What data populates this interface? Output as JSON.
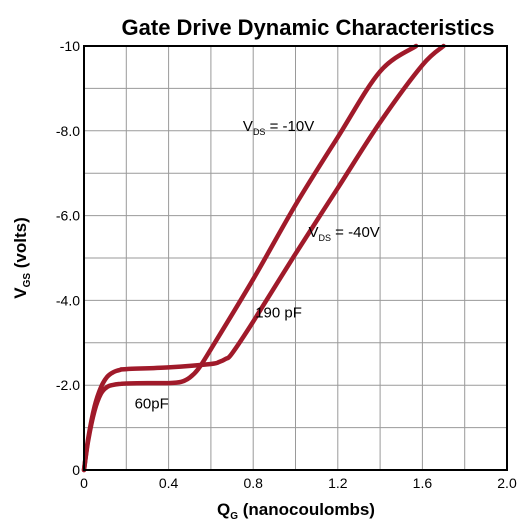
{
  "chart_data": {
    "type": "line",
    "title": "Gate Drive Dynamic Characteristics",
    "xlabel": {
      "main": "Q",
      "sub": "G",
      "rest": " (nanocoulombs)"
    },
    "ylabel": {
      "main": "V",
      "sub": "GS",
      "rest": " (volts)"
    },
    "xlim": [
      0,
      2.0
    ],
    "ylim": [
      0,
      -10
    ],
    "x_ticks": [
      0,
      0.4,
      0.8,
      1.2,
      1.6,
      2.0
    ],
    "x_tick_labels": [
      "0",
      "0.4",
      "0.8",
      "1.2",
      "1.6",
      "2.0"
    ],
    "y_ticks": [
      0,
      -2.0,
      -4.0,
      -6.0,
      -8.0,
      -10
    ],
    "y_tick_labels": [
      "0",
      "-2.0",
      "-4.0",
      "-6.0",
      "-8.0",
      "-10"
    ],
    "grid": true,
    "series": [
      {
        "name": "VDS = -10V",
        "x": [
          0,
          0.02,
          0.05,
          0.08,
          0.11,
          0.14,
          0.17,
          0.2,
          0.3,
          0.4,
          0.46,
          0.5,
          0.54,
          0.6,
          0.8,
          1.0,
          1.2,
          1.4,
          1.57
        ],
        "y": [
          0,
          -0.7,
          -1.4,
          -1.8,
          -1.96,
          -2.01,
          -2.03,
          -2.04,
          -2.05,
          -2.05,
          -2.08,
          -2.18,
          -2.38,
          -2.85,
          -4.5,
          -6.25,
          -7.85,
          -9.4,
          -10
        ]
      },
      {
        "name": "VDS = -40V",
        "x": [
          0,
          0.02,
          0.05,
          0.08,
          0.11,
          0.14,
          0.17,
          0.2,
          0.4,
          0.6,
          0.64,
          0.67,
          0.7,
          0.8,
          1.0,
          1.2,
          1.4,
          1.6,
          1.7
        ],
        "y": [
          0,
          -0.75,
          -1.5,
          -1.95,
          -2.2,
          -2.31,
          -2.36,
          -2.38,
          -2.42,
          -2.5,
          -2.55,
          -2.62,
          -2.75,
          -3.5,
          -5.1,
          -6.65,
          -8.2,
          -9.55,
          -10
        ]
      }
    ],
    "annotations": [
      {
        "id": "vds10",
        "main": "V",
        "sub": "DS",
        "rest": " = -10V",
        "x": 0.92,
        "y": -8.0
      },
      {
        "id": "vds40",
        "main": "V",
        "sub": "DS",
        "rest": " = -40V",
        "x": 1.23,
        "y": -5.5
      },
      {
        "id": "c190",
        "text": "190 pF",
        "x": 0.92,
        "y": -3.6
      },
      {
        "id": "c60",
        "text": "60pF",
        "x": 0.32,
        "y": -1.45
      }
    ],
    "colors": {
      "curve": "#a01a2a",
      "grid": "#9a9a9a"
    }
  }
}
